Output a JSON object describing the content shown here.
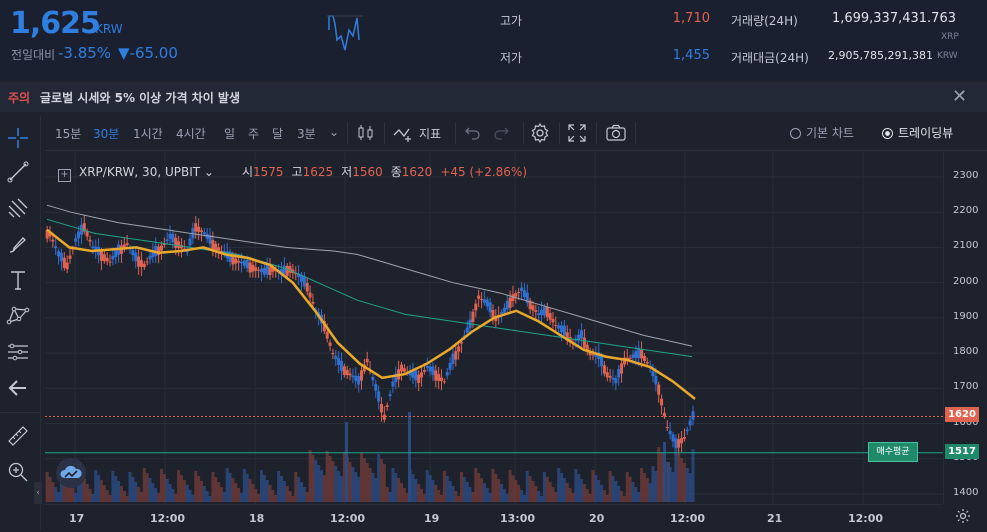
{
  "header": {
    "price": "1,625",
    "currency": "KRW",
    "change_label": "전일대비",
    "change_pct": "-3.85%",
    "change_amt": "▼-65.00",
    "high_label": "고가",
    "high_value": "1,710",
    "low_label": "저가",
    "low_value": "1,455",
    "volume_label": "거래량(24H)",
    "volume_value": "1,699,337,431.763",
    "volume_unit": "XRP",
    "amount_label": "거래대금(24H)",
    "amount_value": "2,905,785,291,381",
    "amount_unit": "KRW",
    "colors": {
      "down": "#2f7fe0",
      "up": "#e0634f"
    }
  },
  "warning": {
    "tag": "주의",
    "message": "글로벌 시세와 5% 이상 가격 차이 발생",
    "close_icon": "close-icon"
  },
  "toolbar": {
    "intervals": [
      "15분",
      "30분",
      "1시간",
      "4시간",
      "일",
      "주",
      "달",
      "3분"
    ],
    "active_interval": "30분",
    "indicator_label": "지표",
    "basic_chart_label": "기본 차트",
    "tradingview_label": "트레이딩뷰"
  },
  "legend": {
    "symbol": "XRP/KRW, 30, UPBIT",
    "open_label": "시",
    "open": "1575",
    "high_label": "고",
    "high": "1625",
    "low_label": "저",
    "low": "1560",
    "close_label": "종",
    "close": "1620",
    "change": "+45 (+2.86%)"
  },
  "markers": {
    "current_price": "1620",
    "avg_buy_label": "매수평균",
    "avg_buy_price": "1517"
  },
  "chart_data": {
    "type": "candlestick",
    "yaxis_ticks": [
      "2300",
      "2200",
      "2100",
      "2000",
      "1900",
      "1800",
      "1700",
      "1600",
      "1500",
      "1400"
    ],
    "ylim": [
      1370,
      2340
    ],
    "xaxis_ticks": [
      "17",
      "12:00",
      "18",
      "12:00",
      "19",
      "13:00",
      "20",
      "12:00",
      "21",
      "12:00"
    ],
    "close_path": [
      2140,
      2080,
      2050,
      2120,
      2160,
      2100,
      2080,
      2060,
      2090,
      2110,
      2070,
      2050,
      2080,
      2100,
      2130,
      2110,
      2090,
      2160,
      2140,
      2110,
      2090,
      2070,
      2060,
      2050,
      2040,
      2030,
      2040,
      2030,
      2040,
      2020,
      1990,
      1920,
      1880,
      1800,
      1760,
      1740,
      1720,
      1780,
      1700,
      1620,
      1710,
      1760,
      1740,
      1730,
      1760,
      1740,
      1720,
      1780,
      1830,
      1880,
      1960,
      1940,
      1900,
      1920,
      1960,
      1980,
      1940,
      1910,
      1920,
      1880,
      1860,
      1830,
      1850,
      1800,
      1790,
      1740,
      1720,
      1780,
      1790,
      1800,
      1760,
      1700,
      1590,
      1540,
      1560,
      1620
    ],
    "ma_slow": [
      2220,
      2200,
      2185,
      2170,
      2160,
      2150,
      2140,
      2130,
      2120,
      2110,
      2100,
      2095,
      2090,
      2080,
      2060,
      2040,
      2020,
      2000,
      1985,
      1970,
      1950,
      1930,
      1910,
      1890,
      1870,
      1850,
      1835,
      1820
    ],
    "ma_mid": [
      2180,
      2160,
      2140,
      2130,
      2120,
      2110,
      2100,
      2090,
      2080,
      2060,
      2040,
      2010,
      1980,
      1950,
      1930,
      1910,
      1900,
      1890,
      1880,
      1870,
      1860,
      1850,
      1840,
      1830,
      1820,
      1810,
      1800,
      1790
    ],
    "ma_yellow": [
      2150,
      2100,
      2090,
      2095,
      2100,
      2085,
      2090,
      2100,
      2080,
      2070,
      2050,
      2000,
      1920,
      1830,
      1770,
      1730,
      1740,
      1770,
      1810,
      1860,
      1900,
      1920,
      1890,
      1850,
      1810,
      1790,
      1780,
      1760,
      1720,
      1670
    ]
  },
  "icons": {
    "crosshair": "crosshair-icon",
    "trendline": "trendline-icon",
    "pitchfork": "pitchfork-icon",
    "brush": "brush-icon",
    "text": "text-icon",
    "pattern": "pattern-icon",
    "fib": "fib-icon",
    "back": "back-arrow-icon",
    "ruler": "ruler-icon",
    "zoom": "zoom-icon",
    "settings": "settings-icon"
  }
}
